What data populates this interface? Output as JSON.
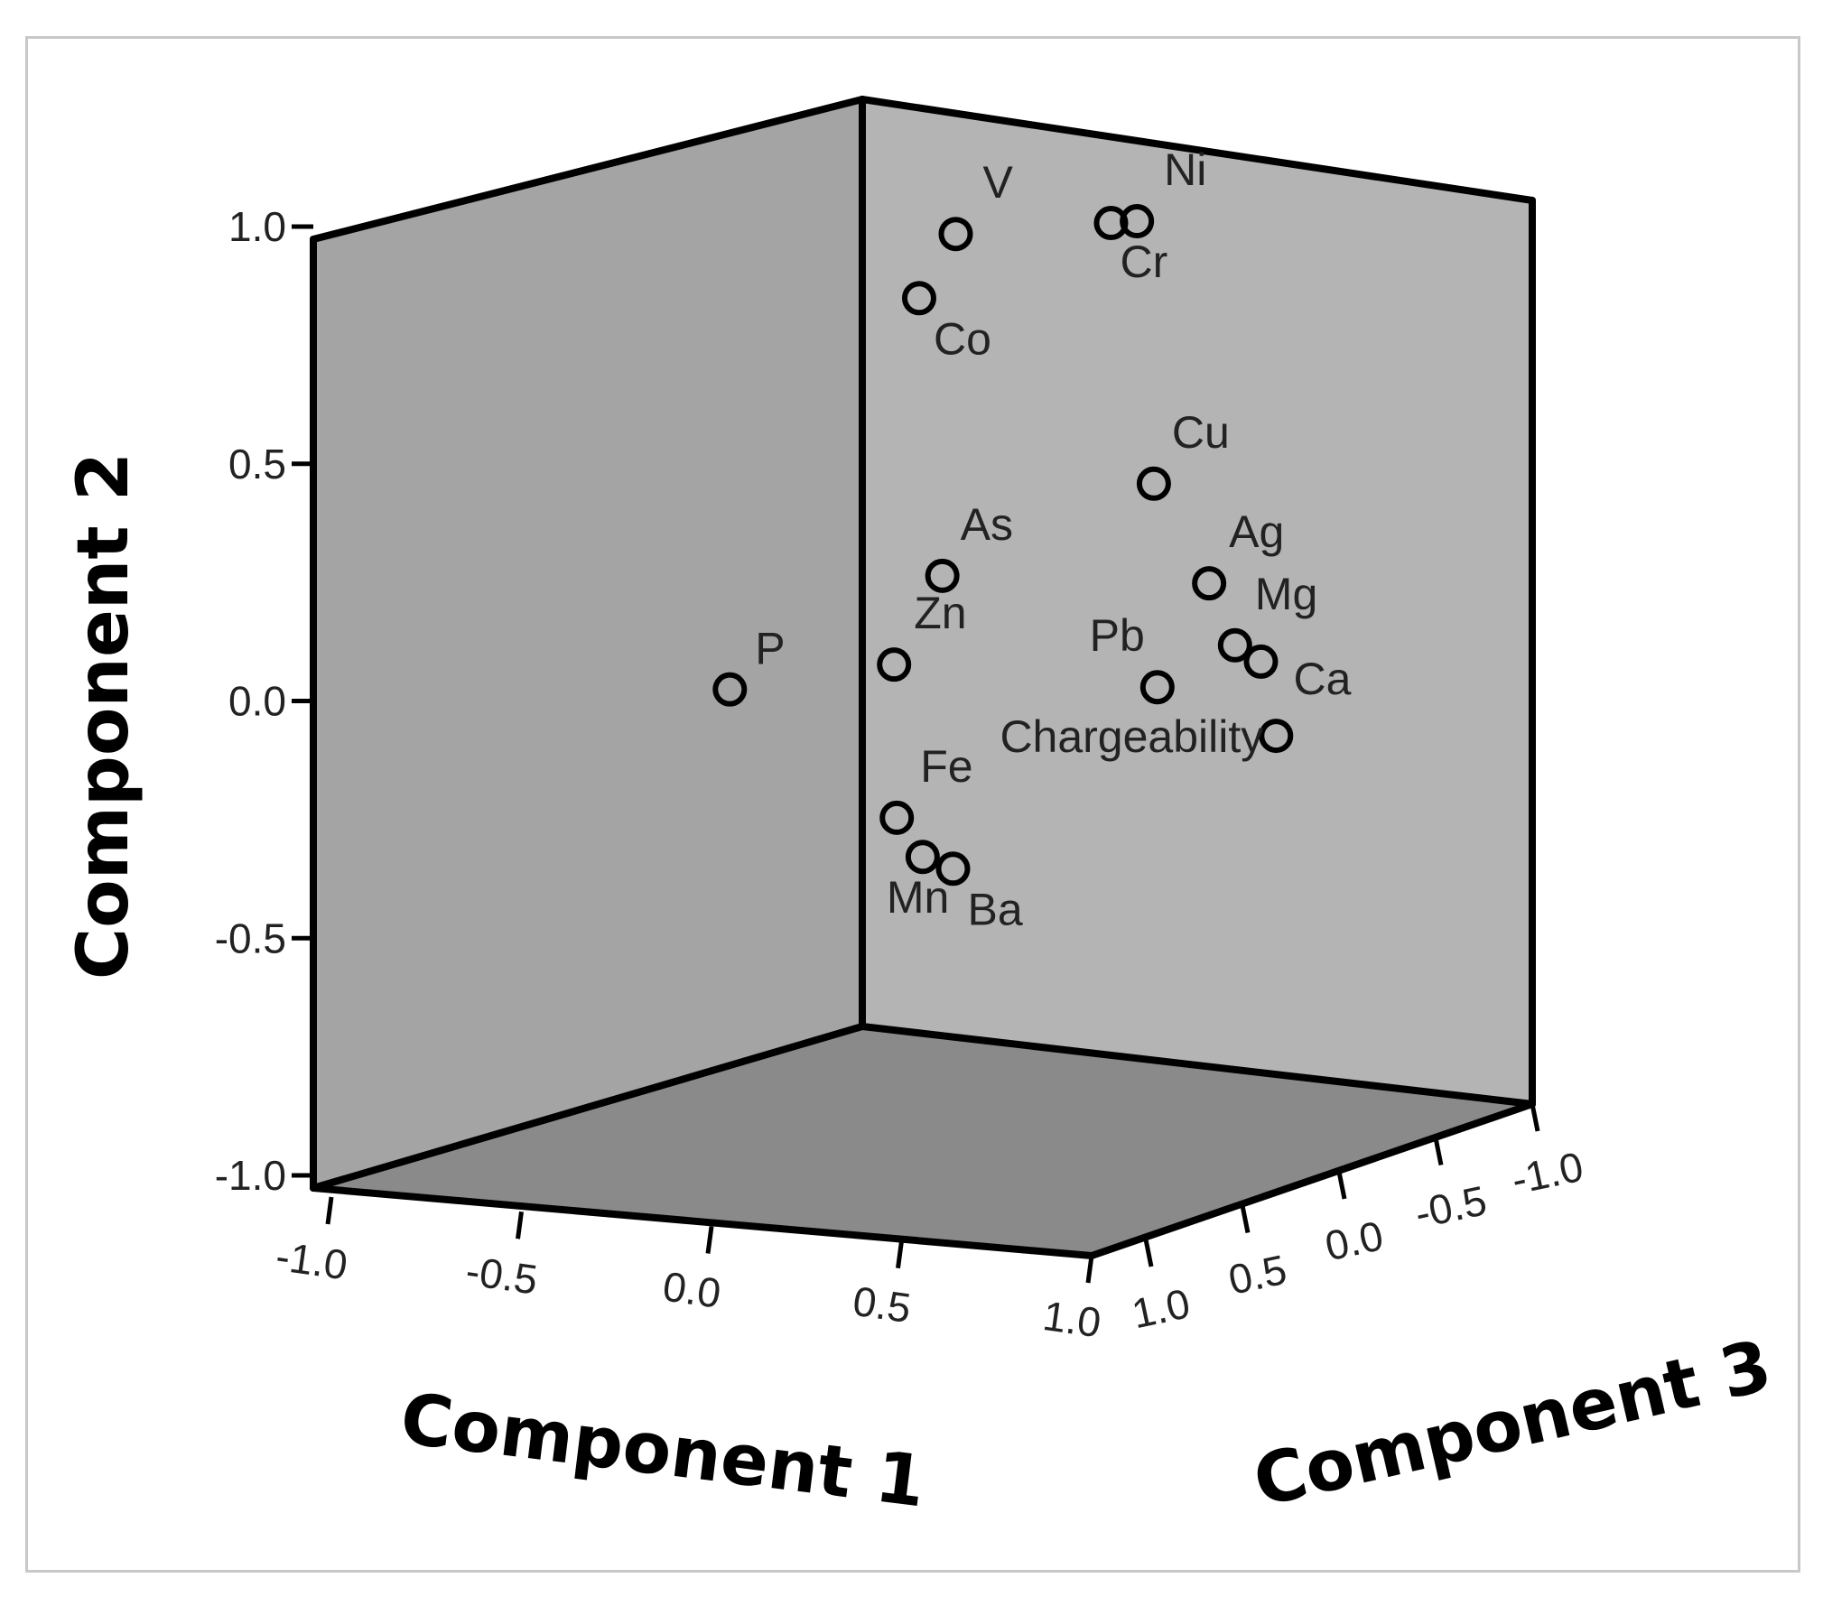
{
  "chart_data": {
    "type": "scatter",
    "title": "",
    "xlabel": "Component 1",
    "ylabel": "Component 2",
    "zlabel": "Component 3",
    "xlim": [
      -1.0,
      1.0
    ],
    "ylim": [
      -1.0,
      1.0
    ],
    "zlim": [
      -1.0,
      1.0
    ],
    "x_ticks": [
      "-1.0",
      "-0.5",
      "0.0",
      "0.5",
      "1.0"
    ],
    "y_ticks": [
      "-1.0",
      "-0.5",
      "0.0",
      "0.5",
      "1.0"
    ],
    "z_ticks": [
      "1.0",
      "0.5",
      "0.0",
      "-0.5",
      "-1.0"
    ],
    "grid": false,
    "legend": "none",
    "colors": {
      "panel_back": "#b4b4b4",
      "panel_side": "#a4a4a4",
      "panel_floor": "#8a8a8a",
      "edge": "#000000",
      "marker": "#000000"
    },
    "points": [
      {
        "label": "V",
        "x": 0.55,
        "y": 0.95,
        "z": 0.45
      },
      {
        "label": "Ni",
        "x": 0.9,
        "y": 0.95,
        "z": 0.1
      },
      {
        "label": "Cr",
        "x": 0.85,
        "y": 0.95,
        "z": 0.15
      },
      {
        "label": "Co",
        "x": 0.5,
        "y": 0.82,
        "z": 0.55
      },
      {
        "label": "Cu",
        "x": 0.85,
        "y": 0.35,
        "z": -0.05
      },
      {
        "label": "As",
        "x": 0.4,
        "y": 0.17,
        "z": 0.3
      },
      {
        "label": "Ag",
        "x": 0.75,
        "y": 0.07,
        "z": -0.45
      },
      {
        "label": "Mg",
        "x": 0.8,
        "y": -0.07,
        "z": -0.5
      },
      {
        "label": "Pb",
        "x": 0.65,
        "y": -0.15,
        "z": -0.35
      },
      {
        "label": "Ca",
        "x": 0.85,
        "y": -0.11,
        "z": -0.55
      },
      {
        "label": "Chargeability",
        "x": 0.9,
        "y": -0.27,
        "z": -0.55
      },
      {
        "label": "Zn",
        "x": 0.1,
        "y": -0.07,
        "z": 0.1
      },
      {
        "label": "P",
        "x": -0.3,
        "y": -0.12,
        "z": 0.3
      },
      {
        "label": "Fe",
        "x": 0.25,
        "y": -0.37,
        "z": 0.3
      },
      {
        "label": "Mn",
        "x": 0.3,
        "y": -0.46,
        "z": 0.25
      },
      {
        "label": "Ba",
        "x": 0.4,
        "y": -0.48,
        "z": 0.25
      }
    ]
  }
}
